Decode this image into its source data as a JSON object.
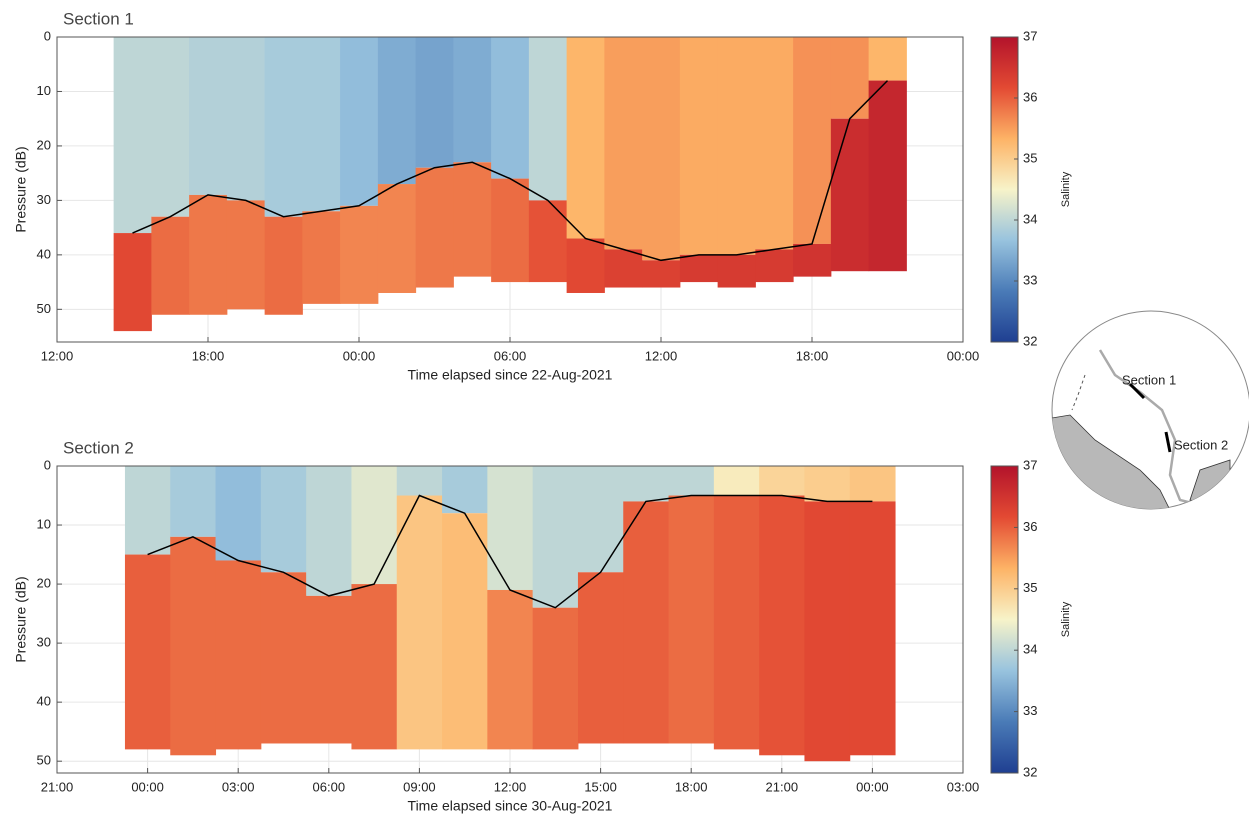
{
  "chart_data": [
    {
      "type": "section",
      "title": "Section 1",
      "xlabel": "Time elapsed since 22-Aug-2021",
      "ylabel": "Pressure (dB)",
      "xlim": [
        12,
        48
      ],
      "xticks": [
        {
          "value": 12,
          "label": "12:00"
        },
        {
          "value": 18,
          "label": "18:00"
        },
        {
          "value": 24,
          "label": "00:00"
        },
        {
          "value": 30,
          "label": "06:00"
        },
        {
          "value": 36,
          "label": "12:00"
        },
        {
          "value": 42,
          "label": "18:00"
        },
        {
          "value": 48,
          "label": "00:00"
        }
      ],
      "ylim": [
        0,
        56
      ],
      "yticks": [
        0,
        10,
        20,
        30,
        40,
        50
      ],
      "y_reversed": true,
      "grid": true,
      "x": [
        15,
        16.5,
        18,
        19.5,
        21,
        22.5,
        24,
        25.5,
        27,
        28.5,
        30,
        31.5,
        33,
        34.5,
        36,
        37.5,
        39,
        40.5,
        42,
        43.5,
        45
      ],
      "boundary_depth": [
        36,
        33,
        29,
        30,
        33,
        32,
        31,
        27,
        24,
        23,
        26,
        30,
        37,
        39,
        41,
        40,
        40,
        39,
        38,
        15,
        8
      ],
      "upper_salinity": [
        34.0,
        34.0,
        33.9,
        33.9,
        33.8,
        33.8,
        33.6,
        33.4,
        33.3,
        33.4,
        33.6,
        34.0,
        35.3,
        35.5,
        35.5,
        35.4,
        35.4,
        35.4,
        35.6,
        35.6,
        35.3
      ],
      "lower_salinity": [
        36.2,
        35.9,
        35.8,
        35.8,
        35.9,
        35.8,
        35.7,
        35.7,
        35.8,
        35.8,
        35.9,
        36.1,
        36.2,
        36.3,
        36.3,
        36.4,
        36.4,
        36.4,
        36.5,
        36.6,
        36.7
      ],
      "bottom_depth": [
        54,
        51,
        51,
        50,
        51,
        49,
        49,
        47,
        46,
        44,
        45,
        45,
        47,
        46,
        46,
        45,
        46,
        45,
        44,
        43,
        43
      ],
      "line_color": "#000000",
      "colorbar": {
        "label": "Salinity",
        "lim": [
          32,
          37
        ],
        "ticks": [
          32,
          33,
          34,
          35,
          36,
          37
        ]
      }
    },
    {
      "type": "section",
      "title": "Section 2",
      "xlabel": "Time elapsed since 30-Aug-2021",
      "ylabel": "Pressure (dB)",
      "xlim": [
        -3,
        27
      ],
      "xticks": [
        {
          "value": -3,
          "label": "21:00"
        },
        {
          "value": 0,
          "label": "00:00"
        },
        {
          "value": 3,
          "label": "03:00"
        },
        {
          "value": 6,
          "label": "06:00"
        },
        {
          "value": 9,
          "label": "09:00"
        },
        {
          "value": 12,
          "label": "12:00"
        },
        {
          "value": 15,
          "label": "15:00"
        },
        {
          "value": 18,
          "label": "18:00"
        },
        {
          "value": 21,
          "label": "21:00"
        },
        {
          "value": 24,
          "label": "00:00"
        },
        {
          "value": 27,
          "label": "03:00"
        }
      ],
      "ylim": [
        0,
        52
      ],
      "yticks": [
        0,
        10,
        20,
        30,
        40,
        50
      ],
      "y_reversed": true,
      "grid": true,
      "x": [
        0,
        1.5,
        3,
        4.5,
        6,
        7.5,
        9,
        10.5,
        12,
        13.5,
        15,
        16.5,
        18,
        19.5,
        21,
        22.5,
        24
      ],
      "boundary_depth": [
        15,
        12,
        16,
        18,
        22,
        20,
        5,
        8,
        21,
        24,
        18,
        6,
        5,
        5,
        5,
        6,
        6
      ],
      "upper_salinity": [
        34.0,
        33.8,
        33.6,
        33.8,
        34.0,
        34.3,
        34.0,
        33.8,
        34.2,
        34.0,
        34.0,
        34.0,
        34.0,
        34.6,
        34.9,
        35.0,
        35.1
      ],
      "lower_salinity": [
        36.0,
        35.9,
        35.9,
        35.9,
        35.9,
        35.9,
        35.1,
        35.2,
        35.7,
        35.9,
        36.0,
        36.0,
        35.9,
        36.0,
        36.1,
        36.2,
        36.2
      ],
      "bottom_depth": [
        48,
        49,
        48,
        47,
        47,
        48,
        48,
        48,
        48,
        48,
        47,
        47,
        47,
        48,
        49,
        50,
        49
      ],
      "line_color": "#000000",
      "colorbar": {
        "label": "Salinity",
        "lim": [
          32,
          37
        ],
        "ticks": [
          32,
          33,
          34,
          35,
          36,
          37
        ]
      }
    }
  ],
  "colormap": [
    "#1f3f91",
    "#4a7bb7",
    "#98c3de",
    "#f7f3c9",
    "#fdb366",
    "#e34a33",
    "#b3132b"
  ],
  "inset": {
    "labels": [
      "Section 1",
      "Section 2"
    ]
  }
}
